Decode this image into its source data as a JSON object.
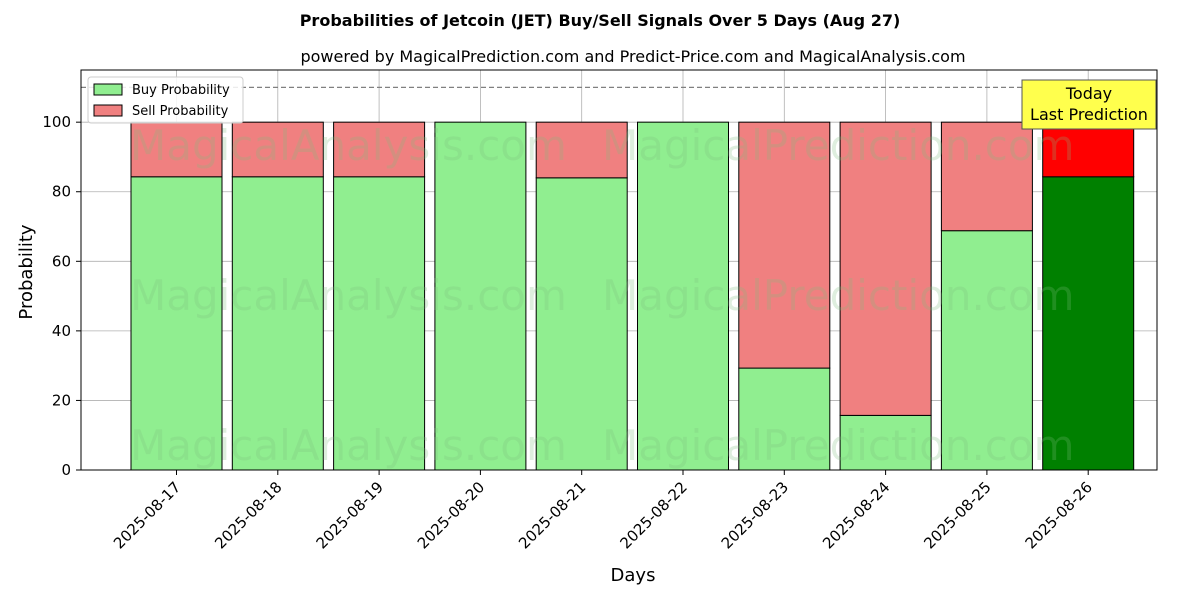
{
  "chart_data": {
    "type": "bar",
    "stacked": true,
    "title": "Probabilities of Jetcoin (JET) Buy/Sell Signals Over 5 Days (Aug 27)",
    "subtitle": "powered by MagicalPrediction.com and Predict-Price.com and MagicalAnalysis.com",
    "xlabel": "Days",
    "ylabel": "Probability",
    "ylim": [
      0,
      115
    ],
    "yticks": [
      0,
      20,
      40,
      60,
      80,
      100
    ],
    "reference_line": 110,
    "grid": true,
    "legend_position": "top-left",
    "categories": [
      "2025-08-17",
      "2025-08-18",
      "2025-08-19",
      "2025-08-20",
      "2025-08-21",
      "2025-08-22",
      "2025-08-23",
      "2025-08-24",
      "2025-08-25",
      "2025-08-26"
    ],
    "series": [
      {
        "name": "Buy Probability",
        "values": [
          84.3,
          84.3,
          84.3,
          100,
          84.0,
          100,
          29.3,
          15.7,
          68.8,
          84.3
        ],
        "color": "#90ee90",
        "highlight_color": "#008000"
      },
      {
        "name": "Sell Probability",
        "values": [
          15.7,
          15.7,
          15.7,
          0,
          16.0,
          0,
          70.7,
          84.3,
          31.2,
          15.7
        ],
        "color": "#f08080",
        "highlight_color": "#ff0000"
      }
    ],
    "annotation": {
      "lines": [
        "Today",
        "Last Prediction"
      ],
      "category": "2025-08-26",
      "color": "#ffff4d"
    },
    "watermarks": [
      "MagicalAnalysis.com",
      "MagicalPrediction.com"
    ]
  }
}
